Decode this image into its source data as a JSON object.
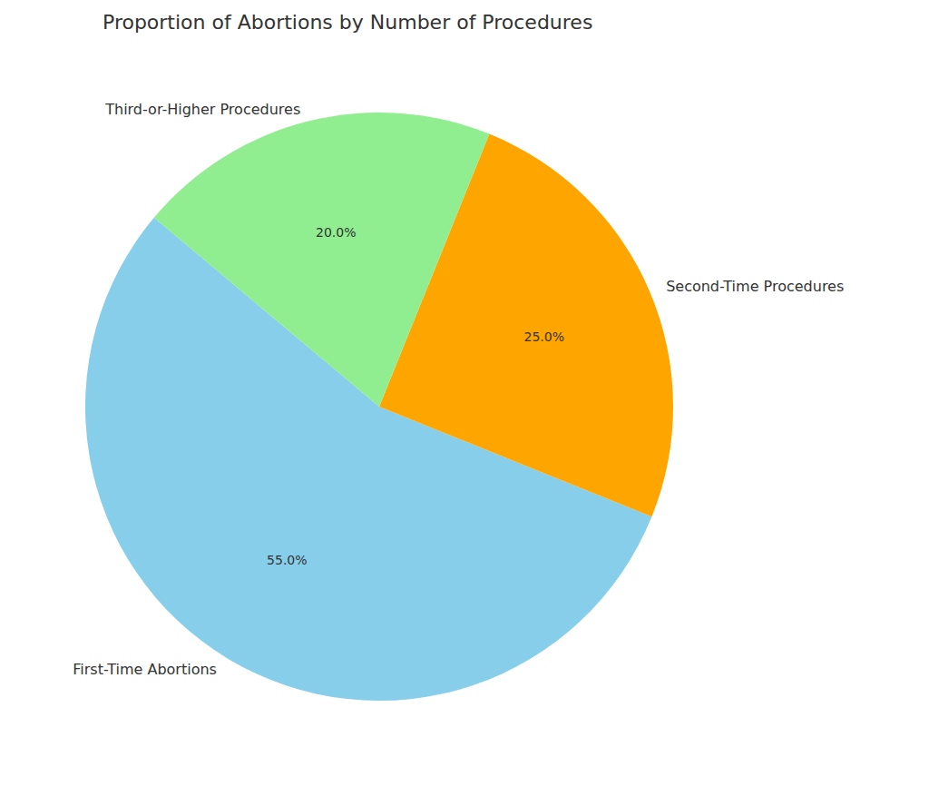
{
  "chart_data": {
    "type": "pie",
    "title": "Proportion of Abortions by Number of Procedures",
    "categories": [
      "First-Time Abortions",
      "Second-Time Procedures",
      "Third-or-Higher Procedures"
    ],
    "values": [
      55,
      25,
      20
    ],
    "value_labels": [
      "55.0%",
      "25.0%",
      "20.0%"
    ],
    "colors": [
      "#87ceeb",
      "#ffa500",
      "#90ee90"
    ],
    "data_labels": true
  }
}
